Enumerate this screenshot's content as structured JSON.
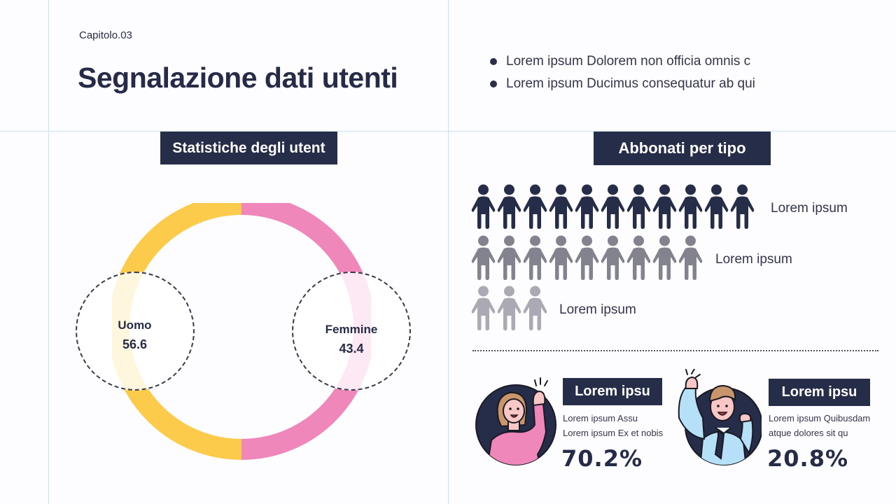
{
  "header": {
    "chapter": "Capitolo.03",
    "title": "Segnalazione dati utenti"
  },
  "bullets": [
    {
      "text": "Lorem ipsum Dolorem non officia omnis c"
    },
    {
      "text": "Lorem ipsum Ducimus consequatur ab qui"
    }
  ],
  "left_panel": {
    "tag": "Statistiche degli utent",
    "segments": [
      {
        "label": "Uomo",
        "value": "56.6",
        "color": "#fdcb4c"
      },
      {
        "label": "Femmine",
        "value": "43.4",
        "color": "#ef87bb"
      }
    ]
  },
  "right_panel": {
    "tag": "Abbonati per tipo",
    "rows": [
      {
        "count": 11,
        "label": "Lorem ipsum",
        "color": "#262d48"
      },
      {
        "count": 9,
        "label": "Lorem ipsum",
        "color": "#83838f"
      },
      {
        "count": 3,
        "label": "Lorem ipsum",
        "color": "#abaab4"
      }
    ],
    "cards": [
      {
        "tag": "Lorem ipsu",
        "line1": "Lorem ipsum Assu",
        "line2": "Lorem ipsum Ex et nobis",
        "percent": "70.2%",
        "avatar": "woman-cheering"
      },
      {
        "tag": "Lorem ipsu",
        "line1": "Lorem ipsum Quibusdam",
        "line2": "atque dolores sit qu",
        "percent": "20.8%",
        "avatar": "man-cheering"
      }
    ]
  },
  "chart_data": {
    "type": "pie",
    "title": "Statistiche degli utent",
    "categories": [
      "Uomo",
      "Femmine"
    ],
    "values": [
      56.6,
      43.4
    ],
    "colors": [
      "#fdcb4c",
      "#ef87bb"
    ]
  }
}
